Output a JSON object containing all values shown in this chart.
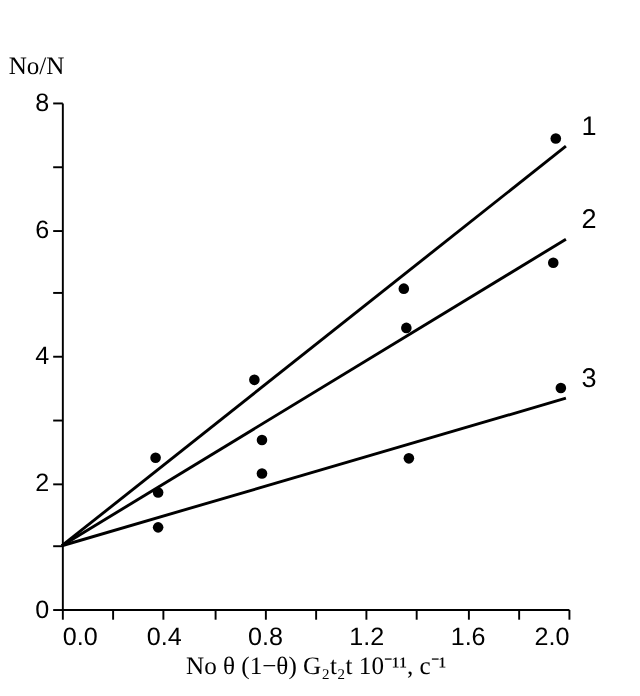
{
  "chart_data": {
    "type": "scatter",
    "xlabel": "No θ (1−θ) G₂t₂t  10⁻¹¹, c⁻¹",
    "ylabel": "No/N",
    "xlim": [
      0,
      2.0
    ],
    "ylim": [
      0,
      8
    ],
    "xticks": [
      {
        "value": 0,
        "label": "0.0"
      },
      {
        "value": 0.2,
        "label": null
      },
      {
        "value": 0.4,
        "label": "0.4"
      },
      {
        "value": 0.6,
        "label": null
      },
      {
        "value": 0.8,
        "label": "0.8"
      },
      {
        "value": 1.0,
        "label": null
      },
      {
        "value": 1.2,
        "label": "1.2"
      },
      {
        "value": 1.4,
        "label": null
      },
      {
        "value": 1.6,
        "label": "1.6"
      },
      {
        "value": 1.8,
        "label": null
      },
      {
        "value": 2.0,
        "label": "2.0"
      }
    ],
    "yticks": [
      0,
      {
        "value": 1,
        "label": null
      },
      2,
      {
        "value": 3,
        "label": null
      },
      4,
      {
        "value": 5,
        "label": null
      },
      6,
      {
        "value": 7,
        "label": null
      },
      8
    ],
    "grid": false,
    "legend": false,
    "marker": "circle",
    "series": [
      {
        "color": "#000000",
        "x": [
          0.37,
          0.76,
          1.35,
          1.95
        ],
        "values": [
          2.39,
          3.62,
          5.06,
          7.43
        ]
      },
      {
        "color": "#000000",
        "x": [
          0.38,
          0.79,
          1.36,
          1.94
        ],
        "values": [
          1.84,
          2.67,
          4.44,
          5.47
        ]
      },
      {
        "color": "#000000",
        "x": [
          0.38,
          0.79,
          1.37,
          1.97
        ],
        "values": [
          1.29,
          2.14,
          2.38,
          3.49
        ]
      },
      {
        "type": "line",
        "name": "1",
        "marker": "none",
        "color": "#000000",
        "x": [
          0,
          1.99
        ],
        "values": [
          1,
          7.31
        ]
      },
      {
        "type": "line",
        "name": "2",
        "marker": "none",
        "color": "#000000",
        "x": [
          0,
          1.99
        ],
        "values": [
          1,
          5.84
        ]
      },
      {
        "type": "line",
        "name": "3",
        "marker": "none",
        "color": "#000000",
        "x": [
          0,
          1.99
        ],
        "values": [
          1,
          3.33
        ]
      }
    ]
  }
}
